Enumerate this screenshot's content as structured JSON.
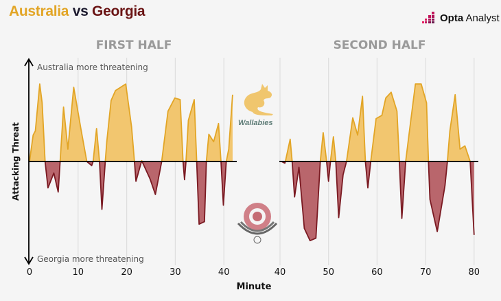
{
  "header": {
    "title_team1": "Australia",
    "title_vs": "vs",
    "title_team2": "Georgia",
    "brand_bold": "Opta",
    "brand_light": "Analyst"
  },
  "colors": {
    "australia": "#e2a526",
    "australia_fill": "#f2c66f",
    "georgia": "#7a1a22",
    "georgia_fill": "#b9666c"
  },
  "logos": {
    "wallabies": "Wallabies"
  },
  "chart_data": {
    "type": "area",
    "title": "Australia vs Georgia",
    "xlabel": "Minute",
    "ylabel": "Attacking Threat",
    "ylim": [
      -1.2,
      1.2
    ],
    "annotations": {
      "top": "Australia more threatening",
      "bottom": "Georgia more threatening"
    },
    "panels": [
      {
        "name": "FIRST HALF",
        "xlim": [
          0,
          42
        ],
        "xticks": [
          0,
          10,
          20,
          30,
          40
        ],
        "points": [
          [
            0,
            0
          ],
          [
            0.75,
            0.32
          ],
          [
            1.2,
            0.37
          ],
          [
            2.1,
            0.94
          ],
          [
            2.6,
            0.71
          ],
          [
            3.2,
            0
          ],
          [
            3.8,
            -0.32
          ],
          [
            5.0,
            -0.14
          ],
          [
            5.9,
            -0.37
          ],
          [
            6.3,
            0
          ],
          [
            7.0,
            0.66
          ],
          [
            7.9,
            0.15
          ],
          [
            9.1,
            0.9
          ],
          [
            10.6,
            0.39
          ],
          [
            11.8,
            0
          ],
          [
            12.8,
            -0.05
          ],
          [
            13.1,
            0
          ],
          [
            13.8,
            0.4
          ],
          [
            14.4,
            0
          ],
          [
            14.9,
            -0.58
          ],
          [
            15.6,
            0
          ],
          [
            15.9,
            0.24
          ],
          [
            16.8,
            0.74
          ],
          [
            17.7,
            0.86
          ],
          [
            19.8,
            0.94
          ],
          [
            21.0,
            0.42
          ],
          [
            21.6,
            0
          ],
          [
            21.9,
            -0.24
          ],
          [
            23.1,
            0.01
          ],
          [
            24.8,
            -0.21
          ],
          [
            25.9,
            -0.4
          ],
          [
            27.2,
            0
          ],
          [
            28.5,
            0.61
          ],
          [
            29.9,
            0.77
          ],
          [
            31.0,
            0.75
          ],
          [
            31.6,
            0
          ],
          [
            31.9,
            -0.22
          ],
          [
            32.2,
            0
          ],
          [
            32.7,
            0.5
          ],
          [
            33.9,
            0.75
          ],
          [
            34.4,
            0
          ],
          [
            34.9,
            -0.76
          ],
          [
            36.0,
            -0.73
          ],
          [
            36.4,
            0
          ],
          [
            36.9,
            0.33
          ],
          [
            37.9,
            0.24
          ],
          [
            38.9,
            0.46
          ],
          [
            39.4,
            0
          ],
          [
            39.9,
            -0.53
          ],
          [
            40.5,
            0
          ],
          [
            41.0,
            0.15
          ],
          [
            41.8,
            0.81
          ]
        ]
      },
      {
        "name": "SECOND HALF",
        "xlim": [
          40,
          80
        ],
        "xticks": [
          40,
          50,
          60,
          70,
          80
        ],
        "points": [
          [
            40.3,
            0
          ],
          [
            41.0,
            -0.02
          ],
          [
            41.1,
            0
          ],
          [
            42.1,
            0.27
          ],
          [
            42.5,
            0
          ],
          [
            43.0,
            -0.43
          ],
          [
            43.9,
            -0.07
          ],
          [
            45.0,
            -0.81
          ],
          [
            46.2,
            -0.96
          ],
          [
            47.4,
            -0.93
          ],
          [
            48.3,
            0
          ],
          [
            48.9,
            0.35
          ],
          [
            49.6,
            0
          ],
          [
            50.0,
            -0.24
          ],
          [
            50.4,
            0
          ],
          [
            51.0,
            0.3
          ],
          [
            51.5,
            0
          ],
          [
            52.1,
            -0.68
          ],
          [
            53.0,
            -0.16
          ],
          [
            53.7,
            0
          ],
          [
            55.0,
            0.53
          ],
          [
            56.0,
            0.32
          ],
          [
            57.0,
            0.79
          ],
          [
            57.6,
            0
          ],
          [
            58.1,
            -0.32
          ],
          [
            58.7,
            0
          ],
          [
            59.8,
            0.52
          ],
          [
            61.0,
            0.56
          ],
          [
            61.8,
            0.77
          ],
          [
            62.9,
            0.84
          ],
          [
            64.1,
            0.61
          ],
          [
            64.6,
            0
          ],
          [
            65.1,
            -0.69
          ],
          [
            65.9,
            0
          ],
          [
            66.5,
            0.29
          ],
          [
            67.9,
            0.94
          ],
          [
            69.1,
            0.94
          ],
          [
            70.2,
            0.71
          ],
          [
            70.6,
            0
          ],
          [
            70.9,
            -0.46
          ],
          [
            72.4,
            -0.85
          ],
          [
            74.0,
            -0.29
          ],
          [
            74.5,
            0
          ],
          [
            75.0,
            0.37
          ],
          [
            76.1,
            0.81
          ],
          [
            77.1,
            0.15
          ],
          [
            78.1,
            0.19
          ],
          [
            79.2,
            0
          ],
          [
            80.0,
            -0.89
          ]
        ]
      }
    ]
  }
}
